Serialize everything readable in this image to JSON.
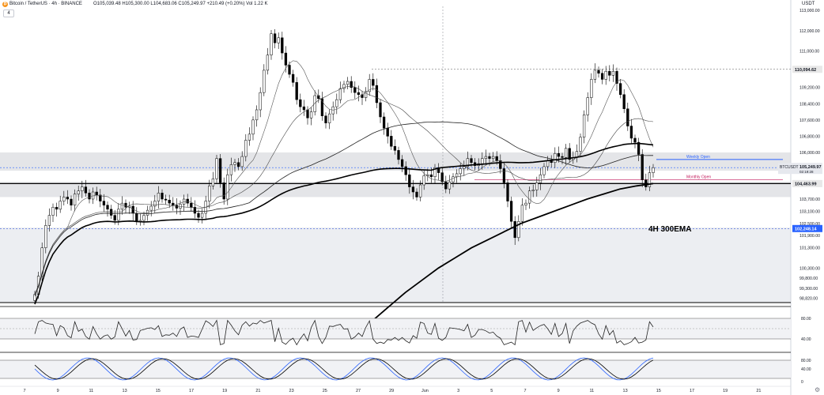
{
  "header": {
    "title": "Bitcoin / TetherUS · 4h · BINANCE",
    "ohlc": "O105,039.48 H105,300.00 L104,683.06 C105,249.97 +210.49 (+0.20%) Vol 1.22 K",
    "collapse_label": "4",
    "currency": "USDT",
    "logo_glyph": "₿"
  },
  "chart_data": {
    "type": "candlestick",
    "x_tick_labels": [
      "7",
      "9",
      "11",
      "13",
      "15",
      "17",
      "19",
      "21",
      "23",
      "25",
      "27",
      "29",
      "Jun",
      "3",
      "5",
      "7",
      "9",
      "11",
      "13",
      "15",
      "17",
      "19",
      "21"
    ],
    "y_tick_labels": [
      "113,000.00",
      "112,000.00",
      "111,000.00",
      "109,200.00",
      "108,400.00",
      "107,600.00",
      "106,800.00",
      "106,000.00",
      "103,700.00",
      "103,100.00",
      "102,500.00",
      "101,900.00",
      "101,300.00",
      "100,300.00",
      "99,800.00",
      "99,300.00",
      "98,820.00"
    ],
    "annotations": {
      "ema_label": "4H 300EMA",
      "weekly_open": "Weekly Open",
      "monthly_open": "Monthly Open"
    },
    "price_labels": {
      "ref_high": "110,094.62",
      "last": "105,249.97",
      "last_symbol": "BTCUSDT",
      "countdown": "02:19:28",
      "hline": "104,463.99",
      "ref_low": "102,248.14"
    },
    "candles_close": [
      99000,
      99900,
      101300,
      102400,
      102900,
      103300,
      103200,
      103600,
      103800,
      103700,
      103400,
      103950,
      104100,
      104300,
      104000,
      103700,
      104050,
      103900,
      103600,
      103400,
      103200,
      102900,
      102650,
      103200,
      103500,
      103300,
      103350,
      103000,
      102600,
      102650,
      102900,
      103150,
      103350,
      103600,
      104000,
      103700,
      103650,
      103500,
      103400,
      103250,
      103450,
      103700,
      103500,
      103300,
      103000,
      102800,
      103000,
      103600,
      104350,
      104700,
      105700,
      104500,
      103700,
      104900,
      105400,
      105500,
      105300,
      105800,
      106600,
      106900,
      107600,
      108100,
      108950,
      110050,
      110800,
      111850,
      111400,
      111650,
      110900,
      110300,
      109850,
      109450,
      108600,
      108250,
      108100,
      107700,
      108000,
      108800,
      108650,
      107800,
      107450,
      107900,
      108250,
      108600,
      109150,
      109350,
      109500,
      109200,
      108950,
      108850,
      108700,
      109000,
      109600,
      109300,
      108450,
      107750,
      107200,
      106800,
      106300,
      106100,
      105650,
      105300,
      104900,
      104300,
      104050,
      103800,
      104400,
      104850,
      104900,
      104800,
      105250,
      105000,
      104550,
      104200,
      104550,
      104800,
      104950,
      105200,
      105300,
      105700,
      105500,
      105350,
      105450,
      105700,
      105800,
      105700,
      105800,
      105600,
      105200,
      104500,
      103600,
      102600,
      101800,
      102600,
      103400,
      103500,
      104100,
      104150,
      104500,
      104900,
      105300,
      105600,
      105500,
      105950,
      105800,
      105750,
      106200,
      105650,
      105750,
      106050,
      106750,
      107850,
      108700,
      109600,
      110050,
      109900,
      109600,
      110000,
      109800,
      110000,
      109400,
      108850,
      108150,
      107300,
      106700,
      106500,
      105900,
      104650,
      104300,
      105000,
      105250
    ],
    "ema_300": [
      97000,
      97700,
      98400,
      99100,
      99700,
      100300,
      100800,
      101300,
      101700,
      102100,
      102500,
      102800,
      103100,
      103400,
      103700,
      103950,
      104200,
      104350,
      104463
    ],
    "indicator_rsi": {
      "levels": [
        80,
        40
      ]
    },
    "indicator_stoch": {
      "levels": [
        80,
        40,
        0.0
      ]
    }
  }
}
